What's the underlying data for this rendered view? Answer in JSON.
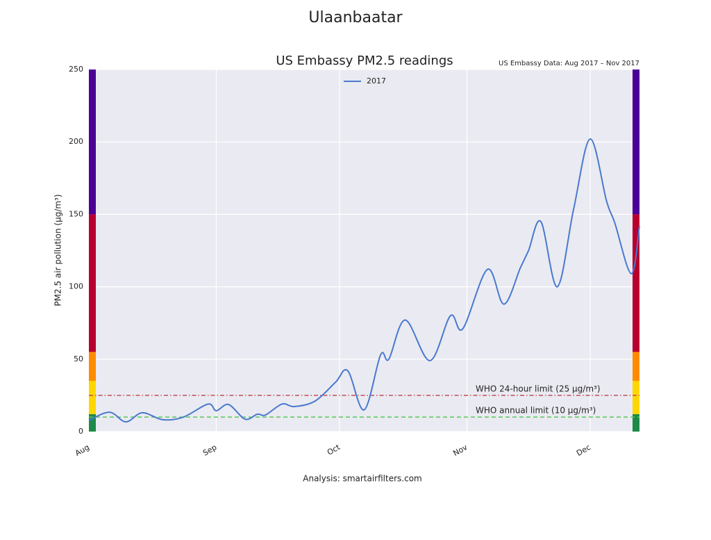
{
  "chart_data": {
    "type": "line",
    "suptitle": "Ulaanbaatar",
    "title": "US Embassy PM2.5 readings",
    "note": "US Embassy Data: Aug 2017 – Nov 2017",
    "ylabel": "PM2.5 air pollution (μg/m³)",
    "footer": "Analysis: smartairfilters.com",
    "x": [
      0,
      5,
      9,
      13,
      18,
      23,
      29,
      31,
      34,
      38,
      41,
      43,
      47,
      50,
      55,
      60,
      63,
      67,
      71,
      73,
      77,
      83,
      88,
      91,
      97,
      101,
      105,
      107,
      110,
      114,
      118,
      122,
      126,
      128,
      132,
      134
    ],
    "series": [
      {
        "name": "2017",
        "color": "#4878cf",
        "values": [
          7.7,
          13.4,
          6.7,
          13,
          8.2,
          10,
          19,
          14.4,
          18.7,
          8.6,
          12,
          11.5,
          19,
          17.3,
          21,
          34,
          42,
          15,
          53,
          50,
          77,
          49,
          80,
          71,
          112,
          88,
          113,
          125,
          145,
          100,
          154,
          202,
          159,
          144,
          109,
          142
        ]
      }
    ],
    "xlim": [
      0,
      134
    ],
    "xticks": [
      {
        "value": 0,
        "label": "Aug"
      },
      {
        "value": 31,
        "label": "Sep"
      },
      {
        "value": 61,
        "label": "Oct"
      },
      {
        "value": 92,
        "label": "Nov"
      },
      {
        "value": 122,
        "label": "Dec"
      }
    ],
    "ylim": [
      0,
      250
    ],
    "yticks": [
      0,
      50,
      100,
      150,
      200,
      250
    ],
    "grid": true,
    "legend": "top-center",
    "hlines": [
      {
        "value": 25,
        "label": "WHO 24-hour limit (25 μg/m³)",
        "color": "#c44e52",
        "style": "dashdot"
      },
      {
        "value": 10,
        "label": "WHO annual limit (10 μg/m³)",
        "color": "#55c855",
        "style": "dashed"
      }
    ],
    "bands": [
      {
        "from": 0,
        "to": 12,
        "color": "#1e8a48"
      },
      {
        "from": 12,
        "to": 35,
        "color": "#ffd700"
      },
      {
        "from": 35,
        "to": 55,
        "color": "#ff8c00"
      },
      {
        "from": 55,
        "to": 150,
        "color": "#b8002e"
      },
      {
        "from": 150,
        "to": 250,
        "color": "#4b0096"
      }
    ]
  }
}
